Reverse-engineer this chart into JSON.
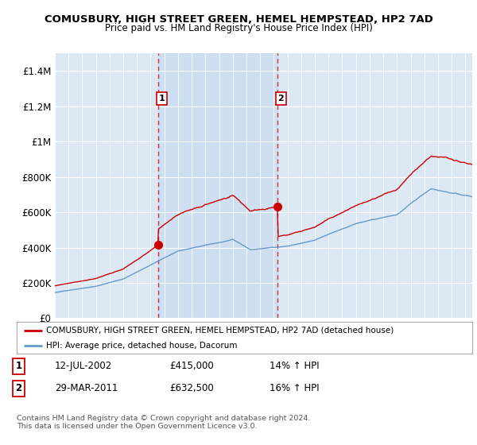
{
  "title": "COMUSBURY, HIGH STREET GREEN, HEMEL HEMPSTEAD, HP2 7AD",
  "subtitle": "Price paid vs. HM Land Registry's House Price Index (HPI)",
  "ylim": [
    0,
    1500000
  ],
  "yticks": [
    0,
    200000,
    400000,
    600000,
    800000,
    1000000,
    1200000,
    1400000
  ],
  "ytick_labels": [
    "£0",
    "£200K",
    "£400K",
    "£600K",
    "£800K",
    "£1M",
    "£1.2M",
    "£1.4M"
  ],
  "bg_color": "#dce9f5",
  "shade_color": "#c5d9ef",
  "line_color_red": "#cc0000",
  "line_color_blue": "#6699cc",
  "vline_color": "#cc3333",
  "marker1_x": 2002.53,
  "marker1_y": 415000,
  "marker2_x": 2011.24,
  "marker2_y": 632500,
  "legend_label_red": "COMUSBURY, HIGH STREET GREEN, HEMEL HEMPSTEAD, HP2 7AD (detached house)",
  "legend_label_blue": "HPI: Average price, detached house, Dacorum",
  "xmin": 1995,
  "xmax": 2025.5,
  "footnote": "Contains HM Land Registry data © Crown copyright and database right 2024.\nThis data is licensed under the Open Government Licence v3.0."
}
